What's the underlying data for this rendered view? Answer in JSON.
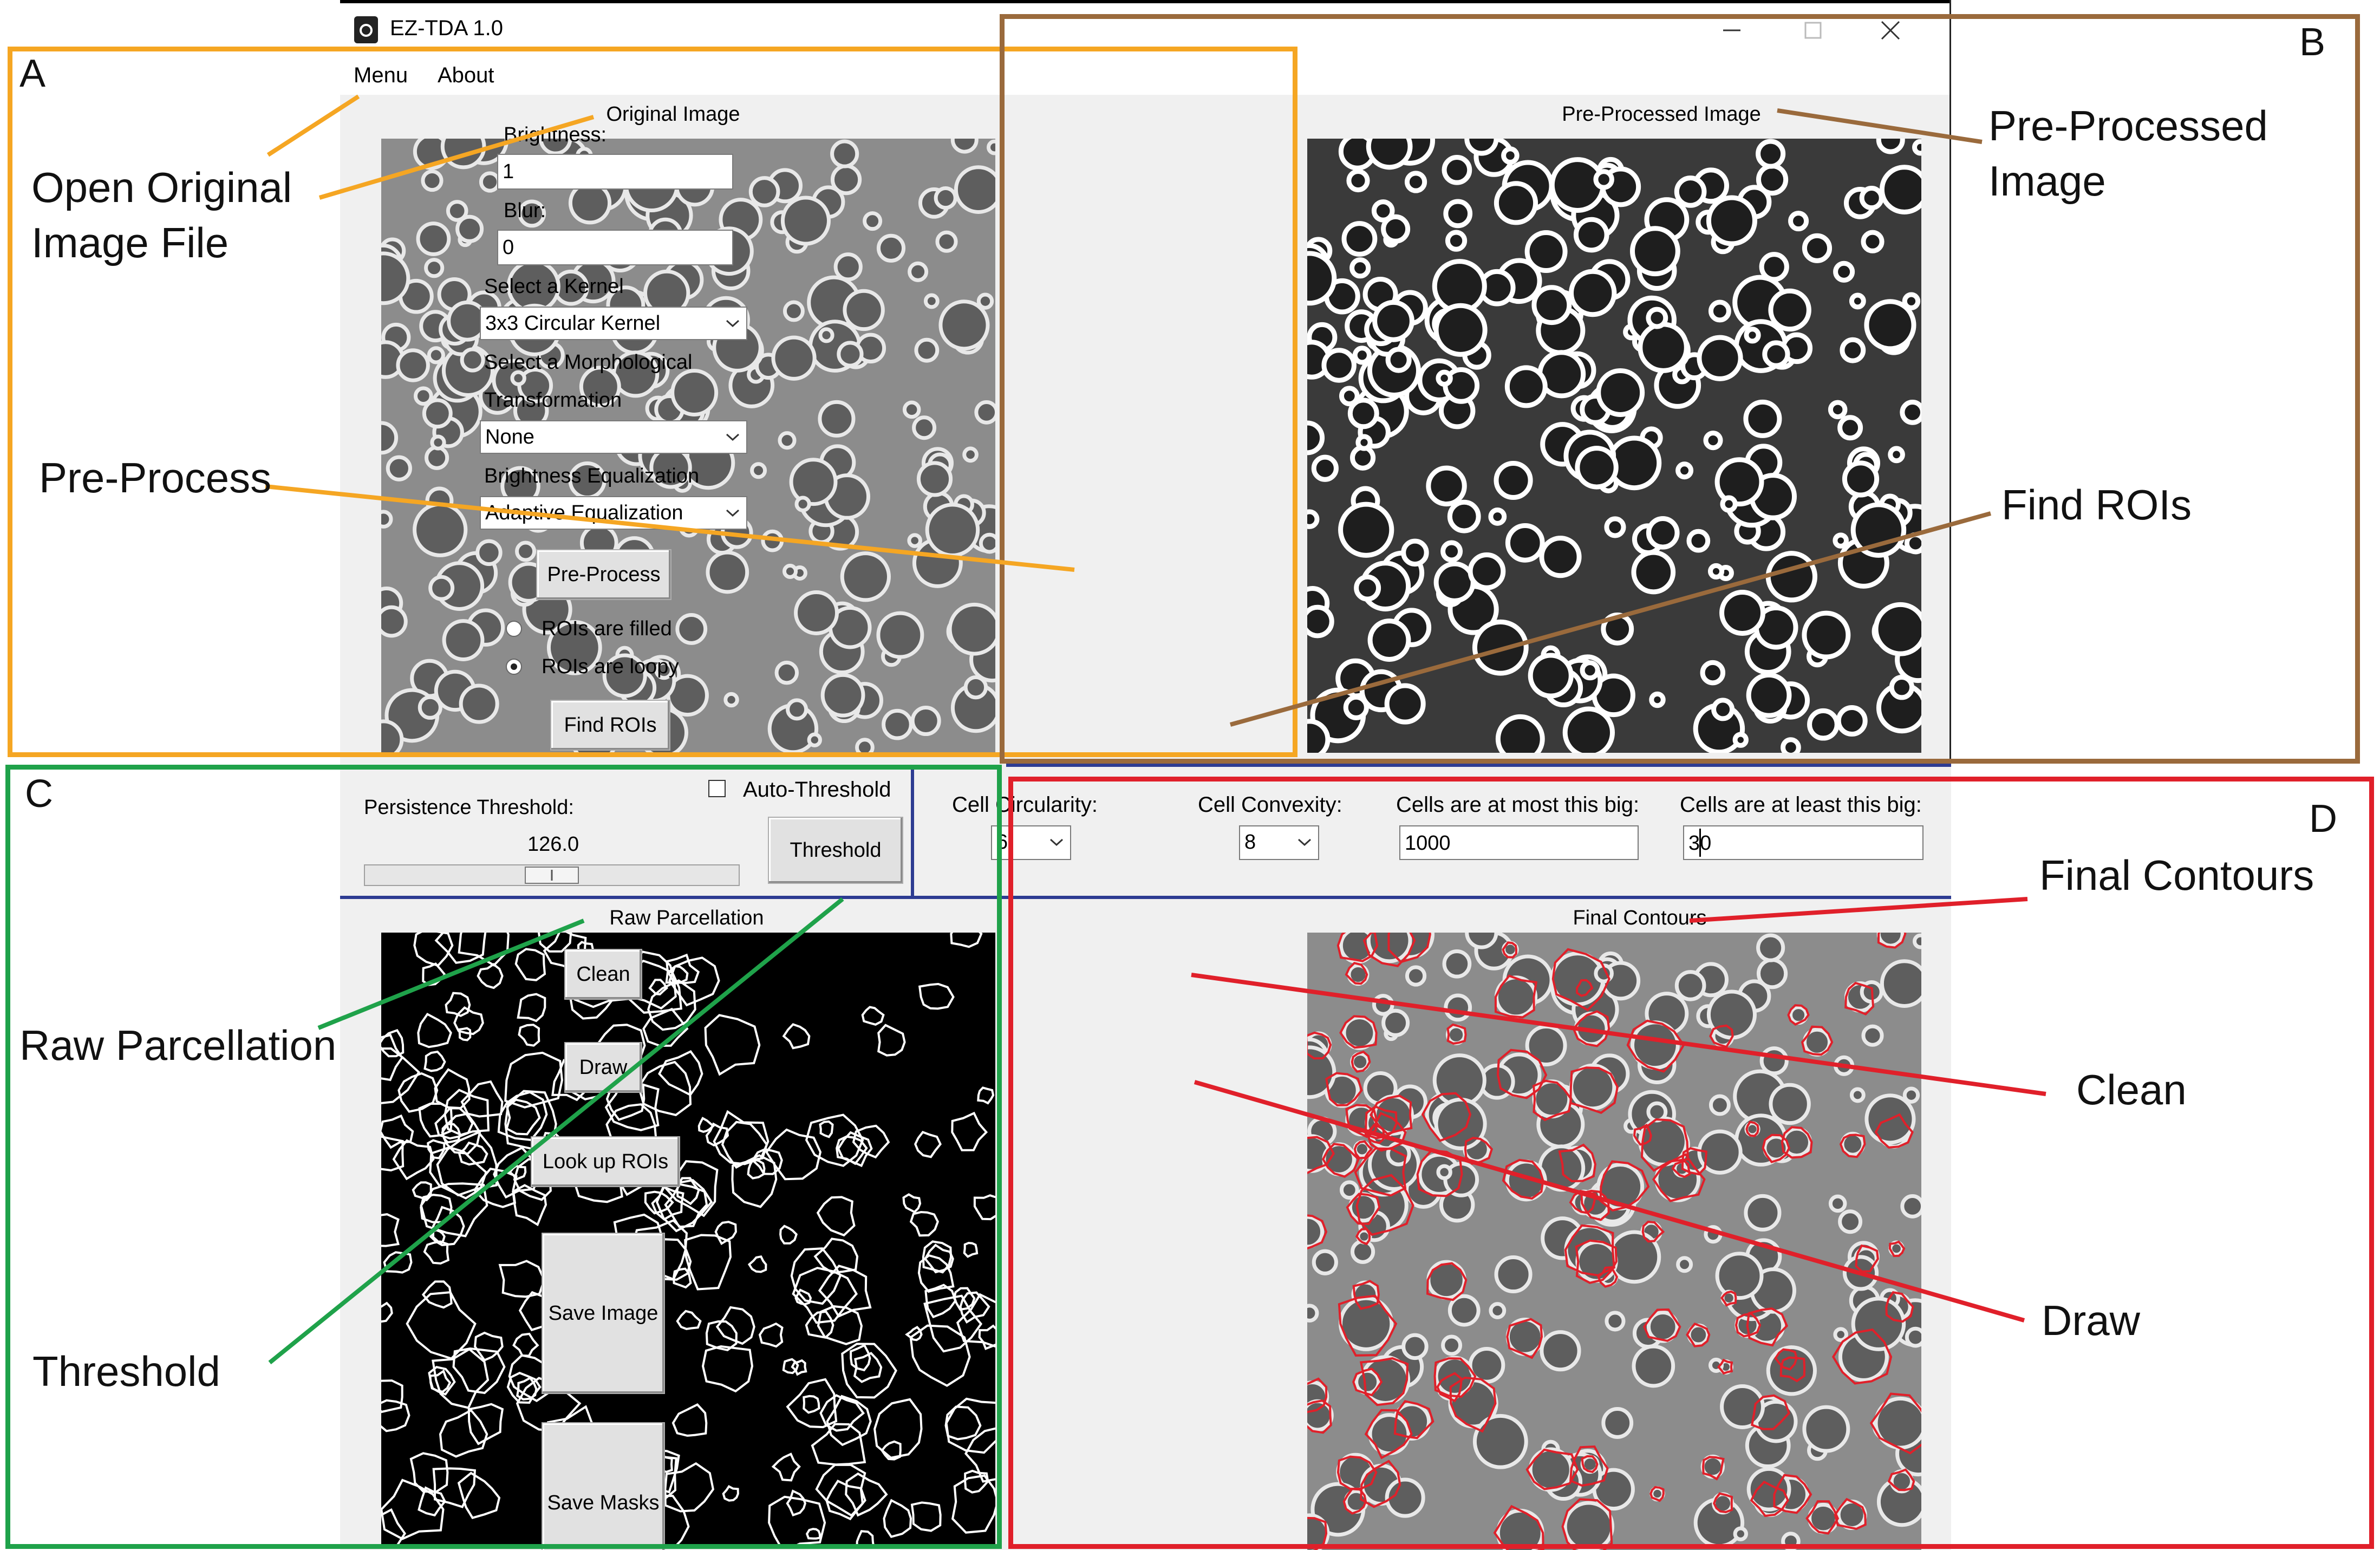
{
  "window": {
    "title": "EZ-TDA 1.0",
    "menu": [
      "Menu",
      "About"
    ]
  },
  "panels": {
    "original_label": "Original Image",
    "preprocessed_label": "Pre-Processed Image",
    "raw_label": "Raw Parcellation",
    "final_label": "Final Contours"
  },
  "controls": {
    "brightness_label": "Brightness:",
    "brightness_value": "1",
    "blur_label": "Blur:",
    "blur_value": "0",
    "kernel_label": "Select a Kernel",
    "kernel_value": "3x3 Circular Kernel",
    "morph_label_1": "Select a Morphological",
    "morph_label_2": "Transformation",
    "morph_value": "None",
    "equalization_label": "Brightness Equalization",
    "equalization_value": "Adaptive Equalization",
    "preprocess_button": "Pre-Process",
    "radio_filled": "ROIs are filled",
    "radio_loopy": "ROIs are loopy",
    "radio_selected": "loopy",
    "find_rois_button": "Find ROIs"
  },
  "threshold": {
    "persistence_label": "Persistence Threshold:",
    "value": "126.0",
    "slider_fraction": 0.5,
    "auto_threshold_label": "Auto-Threshold",
    "threshold_button": "Threshold"
  },
  "filters": {
    "circularity_label": "Cell Circularity:",
    "circularity_value": "6",
    "convexity_label": "Cell Convexity:",
    "convexity_value": "8",
    "max_size_label": "Cells are at most this big:",
    "max_size_value": "1000",
    "min_size_label": "Cells are at least this big:",
    "min_size_value": "30"
  },
  "actions": {
    "clean_button": "Clean",
    "draw_button": "Draw",
    "lookup_button": "Look up ROIs",
    "save_image_button": "Save Image",
    "save_masks_button": "Save Masks"
  },
  "annotations": {
    "section_a": "A",
    "section_b": "B",
    "section_c": "C",
    "section_d": "D",
    "open_original_1": "Open Original",
    "open_original_2": "Image File",
    "pre_process": "Pre-Process",
    "pre_processed_1": "Pre-Processed",
    "pre_processed_2": "Image",
    "find_rois": "Find ROIs",
    "raw_parcellation": "Raw Parcellation",
    "threshold": "Threshold",
    "final_contours": "Final Contours",
    "clean": "Clean",
    "draw": "Draw"
  },
  "colors": {
    "section_a": "#f5a623",
    "section_b": "#9a6a3c",
    "section_c": "#1fa24a",
    "section_d": "#e0202a",
    "divider_blue": "#2d3c92"
  }
}
